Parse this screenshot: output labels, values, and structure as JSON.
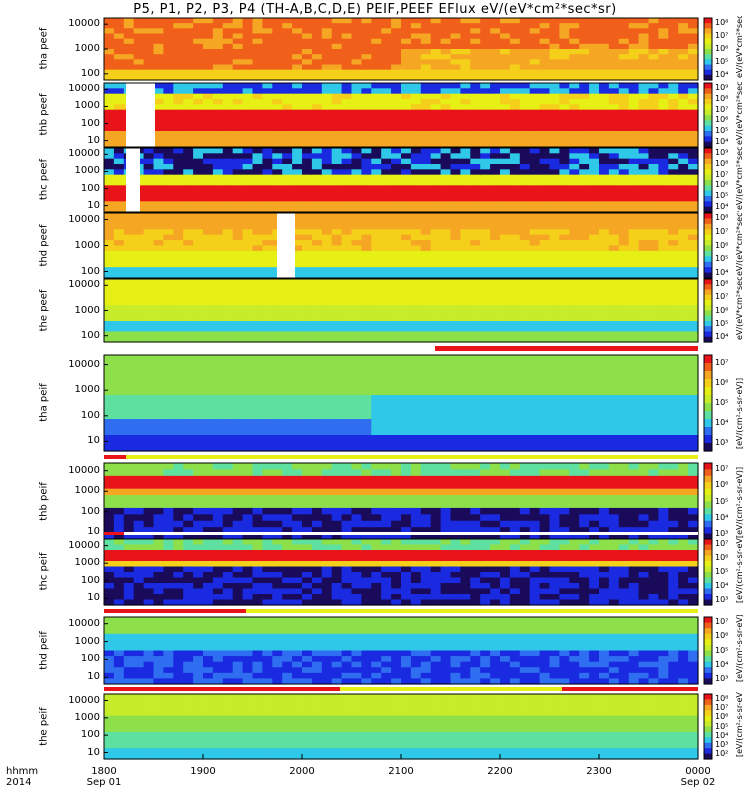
{
  "chart_data": {
    "type": "heatmap",
    "title": "P5, P1, P2, P3, P4 (TH-A,B,C,D,E) PEIF,PEEF EFlux eV/(eV*cm²*sec*sr)",
    "x_axis": {
      "label_line1": "hhmm",
      "label_line2": "2014",
      "ticks": [
        {
          "t": 1800,
          "label": "1800",
          "sub": "Sep 01"
        },
        {
          "t": 1900,
          "label": "1900",
          "sub": ""
        },
        {
          "t": 2000,
          "label": "2000",
          "sub": ""
        },
        {
          "t": 2100,
          "label": "2100",
          "sub": ""
        },
        {
          "t": 2200,
          "label": "2200",
          "sub": ""
        },
        {
          "t": 2300,
          "label": "2300",
          "sub": ""
        },
        {
          "t": 2400,
          "label": "0000",
          "sub": "Sep 02"
        }
      ],
      "range": [
        "2014-09-01 18:00",
        "2014-09-02 00:00"
      ]
    },
    "y_scale": "log",
    "colorbar_units": "[eV/(cm²-s-sr-eV)]",
    "panels": [
      {
        "ylabel": [
          "tha",
          "peef"
        ],
        "yticks": [
          "10000",
          "1000",
          "100"
        ],
        "cbar": [
          "10⁸",
          "10⁷",
          "10⁶",
          "10⁵",
          "10⁴"
        ],
        "cbar_unit": "eV/(eV*cm²*sec*sr)"
      },
      {
        "ylabel": [
          "thb",
          "peef"
        ],
        "yticks": [
          "10000",
          "1000",
          "100",
          "10"
        ],
        "cbar": [
          "10⁹",
          "10⁸",
          "10⁷",
          "10⁶",
          "10⁵",
          "10⁴"
        ],
        "cbar_unit": "eV/(eV*cm²*sec*sr)"
      },
      {
        "ylabel": [
          "thc",
          "peef"
        ],
        "yticks": [
          "10000",
          "1000",
          "100",
          "10"
        ],
        "cbar": [
          "10⁹",
          "10⁸",
          "10⁷",
          "10⁶",
          "10⁵",
          "10⁴"
        ],
        "cbar_unit": "eV/(eV*cm²*sec*sr)"
      },
      {
        "ylabel": [
          "thd",
          "peef"
        ],
        "yticks": [
          "10000",
          "1000",
          "100"
        ],
        "cbar": [
          "10⁸",
          "10⁷",
          "10⁶",
          "10⁵",
          "10⁴"
        ],
        "cbar_unit": "eV/(eV*cm²*sec*sr)"
      },
      {
        "ylabel": [
          "the",
          "peef"
        ],
        "yticks": [
          "10000",
          "1000",
          "100"
        ],
        "cbar": [
          "10⁸",
          "10⁷",
          "10⁶",
          "10⁵",
          "10⁴"
        ],
        "cbar_unit": "eV/(eV*cm²*sec*sr)"
      },
      {
        "ylabel": [
          "tha",
          "peif"
        ],
        "yticks": [
          "10000",
          "1000",
          "100",
          "10"
        ],
        "cbar": [
          "10⁷",
          "10⁶",
          "10⁵",
          "10⁴",
          "10³"
        ],
        "cbar_unit": "eV/(eV*cm²*sec*sr)"
      },
      {
        "ylabel": [
          "thb",
          "peif"
        ],
        "yticks": [
          "10000",
          "1000",
          "100",
          "10"
        ],
        "cbar": [
          "10⁷",
          "10⁶",
          "10⁵",
          "10⁴",
          "10³"
        ],
        "cbar_unit": "eV/(eV*cm²*sec*sr)"
      },
      {
        "ylabel": [
          "thc",
          "peif"
        ],
        "yticks": [
          "10000",
          "1000",
          "100",
          "10"
        ],
        "cbar": [
          "10⁷",
          "10⁶",
          "10⁵",
          "10⁴",
          "10³"
        ],
        "cbar_unit": "eV/(eV*cm²*sec*sr)"
      },
      {
        "ylabel": [
          "thd",
          "peif"
        ],
        "yticks": [
          "10000",
          "1000",
          "100",
          "10"
        ],
        "cbar": [
          "10⁷",
          "10⁶",
          "10⁵",
          "10⁴",
          "10³"
        ],
        "cbar_unit": "eV/(eV*cm²*sec*sr)"
      },
      {
        "ylabel": [
          "the",
          "peif"
        ],
        "yticks": [
          "10000",
          "1000",
          "100",
          "10"
        ],
        "cbar": [
          "10⁸",
          "10⁷",
          "10⁶",
          "10⁵",
          "10⁴",
          "10³",
          "10²"
        ],
        "cbar_unit": "eV/(eV*cm²*sec*sr)"
      }
    ],
    "colors": {
      "red": "#e8141a",
      "orange": "#f5a623",
      "yellow": "#e6f014",
      "green": "#8ee04a",
      "cyan": "#2fc8e8",
      "blue": "#1a2ae0",
      "navy": "#1a0a5a",
      "white": "#ffffff"
    }
  }
}
